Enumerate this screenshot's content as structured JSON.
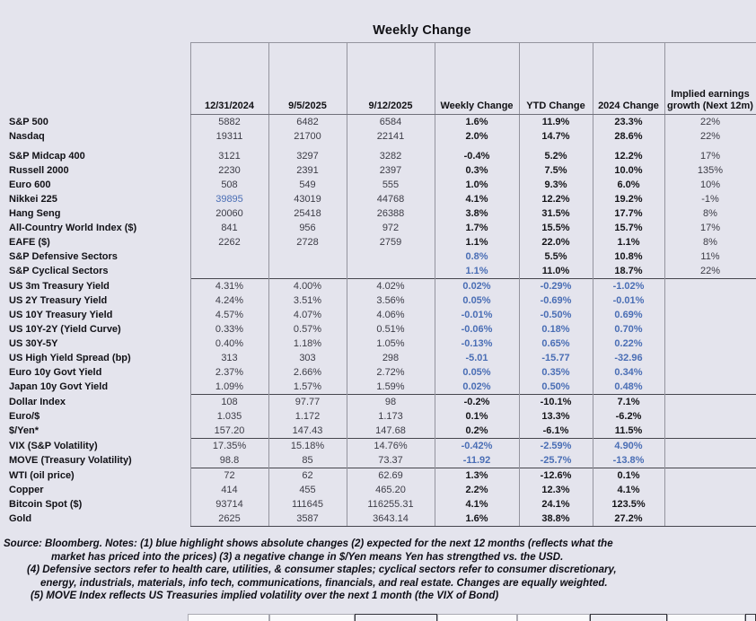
{
  "title": "Weekly Change",
  "colors": {
    "page_background": "#e4e4ed",
    "highlight_blue": "#4a6eb5",
    "text_dark": "#141418"
  },
  "chart_data": {
    "type": "table",
    "title": "Weekly Change",
    "columns": [
      "12/31/2024",
      "9/5/2025",
      "9/12/2025",
      "Weekly Change",
      "YTD Change",
      "2024 Change",
      "Implied earnings growth (Next 12m)"
    ],
    "rows": [
      {
        "label": "S&P 500",
        "values": [
          "5882",
          "6482",
          "6584",
          "1.6%",
          "11.9%",
          "23.3%",
          "22%"
        ],
        "blue": [],
        "sep": false,
        "gapAfter": false
      },
      {
        "label": "Nasdaq",
        "values": [
          "19311",
          "21700",
          "22141",
          "2.0%",
          "14.7%",
          "28.6%",
          "22%"
        ],
        "blue": [],
        "sep": false,
        "gapAfter": true
      },
      {
        "label": "S&P Midcap 400",
        "values": [
          "3121",
          "3297",
          "3282",
          "-0.4%",
          "5.2%",
          "12.2%",
          "17%"
        ],
        "blue": [],
        "sep": false,
        "gapAfter": false
      },
      {
        "label": "Russell 2000",
        "values": [
          "2230",
          "2391",
          "2397",
          "0.3%",
          "7.5%",
          "10.0%",
          "135%"
        ],
        "blue": [],
        "sep": false,
        "gapAfter": false
      },
      {
        "label": "Euro 600",
        "values": [
          "508",
          "549",
          "555",
          "1.0%",
          "9.3%",
          "6.0%",
          "10%"
        ],
        "blue": [],
        "sep": false,
        "gapAfter": false
      },
      {
        "label": "Nikkei 225",
        "values": [
          "39895",
          "43019",
          "44768",
          "4.1%",
          "12.2%",
          "19.2%",
          "-1%"
        ],
        "blue": [
          0
        ],
        "sep": false,
        "gapAfter": false
      },
      {
        "label": "Hang Seng",
        "values": [
          "20060",
          "25418",
          "26388",
          "3.8%",
          "31.5%",
          "17.7%",
          "8%"
        ],
        "blue": [],
        "sep": false,
        "gapAfter": false
      },
      {
        "label": "All-Country World Index ($)",
        "values": [
          "841",
          "956",
          "972",
          "1.7%",
          "15.5%",
          "15.7%",
          "17%"
        ],
        "blue": [],
        "sep": false,
        "gapAfter": false
      },
      {
        "label": "EAFE ($)",
        "values": [
          "2262",
          "2728",
          "2759",
          "1.1%",
          "22.0%",
          "1.1%",
          "8%"
        ],
        "blue": [],
        "sep": false,
        "gapAfter": false
      },
      {
        "label": "S&P Defensive Sectors",
        "values": [
          "",
          "",
          "",
          "0.8%",
          "5.5%",
          "10.8%",
          "11%"
        ],
        "blue": [
          3
        ],
        "sep": false,
        "gapAfter": false
      },
      {
        "label": "S&P Cyclical Sectors",
        "values": [
          "",
          "",
          "",
          "1.1%",
          "11.0%",
          "18.7%",
          "22%"
        ],
        "blue": [
          3
        ],
        "sep": false,
        "gapAfter": false
      },
      {
        "label": "US 3m Treasury Yield",
        "values": [
          "4.31%",
          "4.00%",
          "4.02%",
          "0.02%",
          "-0.29%",
          "-1.02%",
          ""
        ],
        "blue": [
          3,
          4,
          5
        ],
        "sep": true,
        "gapAfter": false
      },
      {
        "label": "US 2Y Treasury Yield",
        "values": [
          "4.24%",
          "3.51%",
          "3.56%",
          "0.05%",
          "-0.69%",
          "-0.01%",
          ""
        ],
        "blue": [
          3,
          4,
          5
        ],
        "sep": false,
        "gapAfter": false
      },
      {
        "label": "US 10Y Treasury Yield",
        "values": [
          "4.57%",
          "4.07%",
          "4.06%",
          "-0.01%",
          "-0.50%",
          "0.69%",
          ""
        ],
        "blue": [
          3,
          4,
          5
        ],
        "sep": false,
        "gapAfter": false
      },
      {
        "label": "US 10Y-2Y (Yield Curve)",
        "values": [
          "0.33%",
          "0.57%",
          "0.51%",
          "-0.06%",
          "0.18%",
          "0.70%",
          ""
        ],
        "blue": [
          3,
          4,
          5
        ],
        "sep": false,
        "gapAfter": false
      },
      {
        "label": "US 30Y-5Y",
        "values": [
          "0.40%",
          "1.18%",
          "1.05%",
          "-0.13%",
          "0.65%",
          "0.22%",
          ""
        ],
        "blue": [
          3,
          4,
          5
        ],
        "sep": false,
        "gapAfter": false
      },
      {
        "label": "US High Yield Spread (bp)",
        "values": [
          "313",
          "303",
          "298",
          "-5.01",
          "-15.77",
          "-32.96",
          ""
        ],
        "blue": [
          3,
          4,
          5
        ],
        "sep": false,
        "gapAfter": false
      },
      {
        "label": "Euro 10y Govt Yield",
        "values": [
          "2.37%",
          "2.66%",
          "2.72%",
          "0.05%",
          "0.35%",
          "0.34%",
          ""
        ],
        "blue": [
          3,
          4,
          5
        ],
        "sep": false,
        "gapAfter": false
      },
      {
        "label": "Japan 10y Govt Yield",
        "values": [
          "1.09%",
          "1.57%",
          "1.59%",
          "0.02%",
          "0.50%",
          "0.48%",
          ""
        ],
        "blue": [
          3,
          4,
          5
        ],
        "sep": false,
        "gapAfter": false
      },
      {
        "label": "Dollar Index",
        "values": [
          "108",
          "97.77",
          "98",
          "-0.2%",
          "-10.1%",
          "7.1%",
          ""
        ],
        "blue": [],
        "sep": true,
        "gapAfter": false
      },
      {
        "label": "Euro/$",
        "values": [
          "1.035",
          "1.172",
          "1.173",
          "0.1%",
          "13.3%",
          "-6.2%",
          ""
        ],
        "blue": [],
        "sep": false,
        "gapAfter": false
      },
      {
        "label": "$/Yen*",
        "values": [
          "157.20",
          "147.43",
          "147.68",
          "0.2%",
          "-6.1%",
          "11.5%",
          ""
        ],
        "blue": [],
        "sep": false,
        "gapAfter": false
      },
      {
        "label": "VIX (S&P Volatility)",
        "values": [
          "17.35%",
          "15.18%",
          "14.76%",
          "-0.42%",
          "-2.59%",
          "4.90%",
          ""
        ],
        "blue": [
          3,
          4,
          5
        ],
        "sep": true,
        "gapAfter": false
      },
      {
        "label": "MOVE (Treasury Volatility)",
        "values": [
          "98.8",
          "85",
          "73.37",
          "-11.92",
          "-25.7%",
          "-13.8%",
          ""
        ],
        "blue": [
          3,
          4,
          5
        ],
        "sep": false,
        "gapAfter": false
      },
      {
        "label": "WTI (oil price)",
        "values": [
          "72",
          "62",
          "62.69",
          "1.3%",
          "-12.6%",
          "0.1%",
          ""
        ],
        "blue": [],
        "sep": true,
        "gapAfter": false
      },
      {
        "label": "Copper",
        "values": [
          "414",
          "455",
          "465.20",
          "2.2%",
          "12.3%",
          "4.1%",
          ""
        ],
        "blue": [],
        "sep": false,
        "gapAfter": false
      },
      {
        "label": "Bitcoin Spot ($)",
        "values": [
          "93714",
          "111645",
          "116255.31",
          "4.1%",
          "24.1%",
          "123.5%",
          ""
        ],
        "blue": [],
        "sep": false,
        "gapAfter": false
      },
      {
        "label": "Gold",
        "values": [
          "2625",
          "3587",
          "3643.14",
          "1.6%",
          "38.8%",
          "27.2%",
          ""
        ],
        "blue": [],
        "sep": false,
        "gapAfter": false
      }
    ],
    "notes": [
      "Source: Bloomberg. Notes: (1) blue highlight shows absolute changes (2) expected for the next 12 months (reflects what the",
      "market has priced into the prices) (3) a negative change in $/Yen means Yen has strengthed vs. the USD.",
      "(4) Defensive sectors refer to health care, utilities, & consumer staples; cyclical sectors refer to consumer discretionary,",
      "energy, industrials, materials, info tech, communications, financials, and real estate. Changes are equally weighted.",
      "(5) MOVE Index reflects US Treasuries implied volatility over the next 1 month (the VIX of Bond)"
    ]
  }
}
